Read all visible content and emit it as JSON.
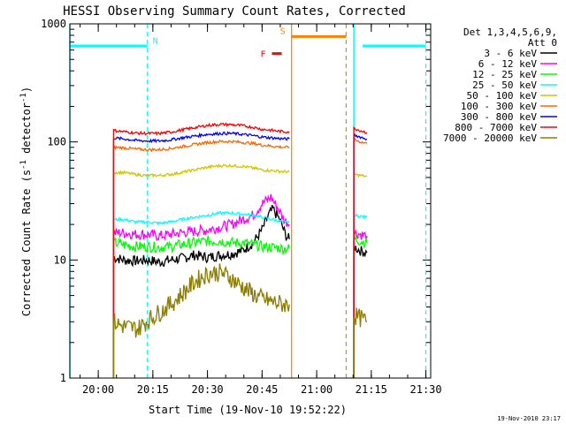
{
  "chart_data": {
    "type": "line",
    "title": "HESSI Observing Summary Count Rates, Corrected",
    "xlabel": "Start Time (19-Nov-10 19:52:22)",
    "ylabel": "Corrected Count Rate (s",
    "ylabel_sup1": "-1",
    "ylabel_mid": " detector",
    "ylabel_sup2": "-1",
    "ylabel_end": ")",
    "y_scale": "log",
    "ylim": [
      1,
      1000
    ],
    "y_ticks": [
      {
        "value": 1,
        "label": "1"
      },
      {
        "value": 10,
        "label": "10"
      },
      {
        "value": 100,
        "label": "100"
      },
      {
        "value": 1000,
        "label": "1000"
      }
    ],
    "xlim_minutes": [
      19.87,
      21.522
    ],
    "x_ticks": [
      {
        "value": 20.0,
        "label": "20:00"
      },
      {
        "value": 20.25,
        "label": "20:15"
      },
      {
        "value": 20.5,
        "label": "20:30"
      },
      {
        "value": 20.75,
        "label": "20:45"
      },
      {
        "value": 21.0,
        "label": "21:00"
      },
      {
        "value": 21.25,
        "label": "21:15"
      },
      {
        "value": 21.5,
        "label": "21:30"
      }
    ],
    "legend_header_1": "Det 1,3,4,5,6,9,",
    "legend_header_2": "Att 0",
    "series": [
      {
        "name": "3 - 6 keV",
        "color": "#000000",
        "segments": [
          [
            [
              20.07,
              10.5
            ],
            [
              20.12,
              10
            ],
            [
              20.17,
              9.8
            ],
            [
              20.22,
              10
            ],
            [
              20.28,
              9.6
            ],
            [
              20.33,
              10
            ],
            [
              20.38,
              10.3
            ],
            [
              20.44,
              11
            ],
            [
              20.5,
              10.5
            ],
            [
              20.56,
              11
            ],
            [
              20.61,
              11.3
            ],
            [
              20.66,
              12
            ],
            [
              20.71,
              14
            ],
            [
              20.75,
              18
            ],
            [
              20.78,
              24
            ],
            [
              20.8,
              27
            ],
            [
              20.83,
              22
            ],
            [
              20.86,
              16
            ],
            [
              20.875,
              15
            ]
          ],
          [
            [
              21.17,
              13
            ],
            [
              21.2,
              12
            ],
            [
              21.23,
              11.5
            ]
          ]
        ]
      },
      {
        "name": "6 - 12 keV",
        "color": "#ff00ff",
        "segments": [
          [
            [
              20.07,
              17
            ],
            [
              20.12,
              17
            ],
            [
              20.17,
              16.5
            ],
            [
              20.22,
              16.5
            ],
            [
              20.28,
              16
            ],
            [
              20.33,
              16.5
            ],
            [
              20.38,
              17
            ],
            [
              20.44,
              17.5
            ],
            [
              20.5,
              18
            ],
            [
              20.56,
              19
            ],
            [
              20.61,
              20
            ],
            [
              20.66,
              22
            ],
            [
              20.71,
              24
            ],
            [
              20.75,
              30
            ],
            [
              20.79,
              34
            ],
            [
              20.82,
              28
            ],
            [
              20.85,
              22
            ],
            [
              20.875,
              20
            ]
          ],
          [
            [
              21.17,
              17
            ],
            [
              21.2,
              16.5
            ],
            [
              21.23,
              16
            ]
          ]
        ]
      },
      {
        "name": "12 - 25 keV",
        "color": "#00ff00",
        "segments": [
          [
            [
              20.07,
              14
            ],
            [
              20.12,
              13.5
            ],
            [
              20.17,
              13
            ],
            [
              20.22,
              13
            ],
            [
              20.28,
              12.8
            ],
            [
              20.33,
              13
            ],
            [
              20.38,
              13.5
            ],
            [
              20.44,
              14
            ],
            [
              20.5,
              14.5
            ],
            [
              20.56,
              14.5
            ],
            [
              20.61,
              14
            ],
            [
              20.66,
              14
            ],
            [
              20.71,
              13.5
            ],
            [
              20.75,
              13
            ],
            [
              20.8,
              12.8
            ],
            [
              20.85,
              12.5
            ],
            [
              20.875,
              12.5
            ]
          ],
          [
            [
              21.17,
              15
            ],
            [
              21.2,
              14.5
            ],
            [
              21.23,
              14
            ]
          ]
        ]
      },
      {
        "name": "25 - 50 keV",
        "color": "#00ffff",
        "segments": [
          [
            [
              20.07,
              22
            ],
            [
              20.12,
              22
            ],
            [
              20.17,
              21
            ],
            [
              20.22,
              21
            ],
            [
              20.28,
              20.5
            ],
            [
              20.33,
              21
            ],
            [
              20.38,
              22
            ],
            [
              20.44,
              23
            ],
            [
              20.5,
              24
            ],
            [
              20.56,
              25
            ],
            [
              20.61,
              25
            ],
            [
              20.66,
              24.5
            ],
            [
              20.71,
              24
            ],
            [
              20.75,
              23
            ],
            [
              20.8,
              22
            ],
            [
              20.85,
              21
            ],
            [
              20.875,
              21
            ]
          ],
          [
            [
              21.17,
              24
            ],
            [
              21.2,
              23.5
            ],
            [
              21.23,
              23
            ]
          ]
        ]
      },
      {
        "name": "50 - 100 keV",
        "color": "#d4c400",
        "segments": [
          [
            [
              20.07,
              55
            ],
            [
              20.12,
              55
            ],
            [
              20.17,
              53
            ],
            [
              20.22,
              52
            ],
            [
              20.28,
              52
            ],
            [
              20.33,
              53
            ],
            [
              20.38,
              55
            ],
            [
              20.44,
              58
            ],
            [
              20.5,
              61
            ],
            [
              20.56,
              63
            ],
            [
              20.61,
              63
            ],
            [
              20.66,
              62
            ],
            [
              20.71,
              60
            ],
            [
              20.75,
              58
            ],
            [
              20.8,
              57
            ],
            [
              20.85,
              56
            ],
            [
              20.875,
              56
            ]
          ],
          [
            [
              21.17,
              53
            ],
            [
              21.2,
              52
            ],
            [
              21.23,
              51
            ]
          ]
        ]
      },
      {
        "name": "100 - 300 keV",
        "color": "#ff6600",
        "segments": [
          [
            [
              20.07,
              90
            ],
            [
              20.12,
              89
            ],
            [
              20.17,
              87
            ],
            [
              20.22,
              86
            ],
            [
              20.28,
              86
            ],
            [
              20.33,
              88
            ],
            [
              20.38,
              91
            ],
            [
              20.44,
              95
            ],
            [
              20.5,
              99
            ],
            [
              20.56,
              101
            ],
            [
              20.61,
              101
            ],
            [
              20.66,
              99
            ],
            [
              20.71,
              97
            ],
            [
              20.75,
              94
            ],
            [
              20.8,
              92
            ],
            [
              20.85,
              90
            ],
            [
              20.875,
              90
            ]
          ],
          [
            [
              21.17,
              105
            ],
            [
              21.2,
              100
            ],
            [
              21.23,
              97
            ]
          ]
        ]
      },
      {
        "name": "300 - 800 keV",
        "color": "#0000ff",
        "segments": [
          [
            [
              20.07,
              108
            ],
            [
              20.12,
              106
            ],
            [
              20.17,
              103
            ],
            [
              20.22,
              102
            ],
            [
              20.28,
              102
            ],
            [
              20.33,
              104
            ],
            [
              20.38,
              108
            ],
            [
              20.44,
              112
            ],
            [
              20.5,
              116
            ],
            [
              20.56,
              118
            ],
            [
              20.61,
              118
            ],
            [
              20.66,
              116
            ],
            [
              20.71,
              113
            ],
            [
              20.75,
              110
            ],
            [
              20.8,
              108
            ],
            [
              20.85,
              106
            ],
            [
              20.875,
              106
            ]
          ],
          [
            [
              21.17,
              115
            ],
            [
              21.2,
              110
            ],
            [
              21.23,
              106
            ]
          ]
        ]
      },
      {
        "name": "800 - 7000 keV",
        "color": "#ff0000",
        "segments": [
          [
            [
              20.07,
              125
            ],
            [
              20.12,
              122
            ],
            [
              20.17,
              119
            ],
            [
              20.22,
              118
            ],
            [
              20.28,
              118
            ],
            [
              20.33,
              121
            ],
            [
              20.38,
              126
            ],
            [
              20.44,
              132
            ],
            [
              20.5,
              138
            ],
            [
              20.56,
              141
            ],
            [
              20.61,
              140
            ],
            [
              20.66,
              137
            ],
            [
              20.71,
              133
            ],
            [
              20.75,
              128
            ],
            [
              20.8,
              125
            ],
            [
              20.85,
              122
            ],
            [
              20.875,
              122
            ]
          ],
          [
            [
              21.17,
              130
            ],
            [
              21.2,
              125
            ],
            [
              21.23,
              120
            ]
          ]
        ]
      },
      {
        "name": "7000 - 20000 keV",
        "color": "#8b7d00",
        "segments": [
          [
            [
              20.07,
              3
            ],
            [
              20.1,
              2.8
            ],
            [
              20.14,
              2.7
            ],
            [
              20.18,
              2.6
            ],
            [
              20.22,
              3
            ],
            [
              20.26,
              3.4
            ],
            [
              20.3,
              3.8
            ],
            [
              20.35,
              4.5
            ],
            [
              20.4,
              5.5
            ],
            [
              20.44,
              6.5
            ],
            [
              20.48,
              7.3
            ],
            [
              20.52,
              7.8
            ],
            [
              20.56,
              7.8
            ],
            [
              20.6,
              7.2
            ],
            [
              20.64,
              6.3
            ],
            [
              20.68,
              5.6
            ],
            [
              20.72,
              5
            ],
            [
              20.76,
              4.6
            ],
            [
              20.8,
              4.4
            ],
            [
              20.85,
              4.2
            ],
            [
              20.875,
              4.2
            ]
          ],
          [
            [
              21.17,
              3.4
            ],
            [
              21.2,
              3.2
            ],
            [
              21.23,
              3
            ]
          ]
        ]
      }
    ],
    "markers": {
      "n_label": "N",
      "s_label": "S",
      "f_label": "F",
      "night_bars": [
        [
          19.87,
          20.225
        ],
        [
          21.21,
          21.5
        ]
      ],
      "night_bar_color": "#00ffff",
      "saa_bar": [
        20.885,
        21.135
      ],
      "saa_color": "#ff7f00",
      "flare_bar": [
        20.795,
        20.84
      ],
      "flare_color": "#ff0000",
      "cyan_solid_lines": [
        19.87,
        21.17
      ],
      "cyan_dashed_lines": [
        20.225,
        21.5
      ],
      "orange_solid_lines": [
        20.885
      ],
      "orange_dashed_lines": [
        21.135
      ]
    },
    "grid": false,
    "legend_position": "right"
  },
  "footer_timestamp": "19-Nov-2010 23:17"
}
